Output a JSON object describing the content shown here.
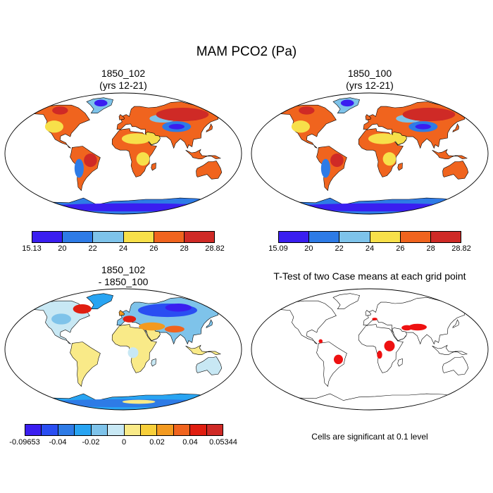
{
  "figure": {
    "title": "MAM PCO2 (Pa)"
  },
  "panels": [
    {
      "id": "p1",
      "title_line1": "1850_102",
      "title_line2": "(yrs 12-21)",
      "field": "abs"
    },
    {
      "id": "p2",
      "title_line1": "1850_100",
      "title_line2": "(yrs 12-21)",
      "field": "abs"
    },
    {
      "id": "p3",
      "title_line1": "1850_102",
      "title_line2": "- 1850_100",
      "field": "diff"
    },
    {
      "id": "p4",
      "title_line1": "T-Test of two Case means at each grid point",
      "title_line2": "",
      "field": "ttest"
    }
  ],
  "colorbars": {
    "abs1": {
      "colors": [
        "#3a1ef0",
        "#2e7be6",
        "#7ec3ea",
        "#f7e04a",
        "#f0641e",
        "#cf2a26"
      ],
      "labels": [
        "15.13",
        "20",
        "22",
        "24",
        "26",
        "28",
        "28.82"
      ]
    },
    "abs2": {
      "colors": [
        "#3a1ef0",
        "#2e7be6",
        "#7ec3ea",
        "#f7e04a",
        "#f0641e",
        "#cf2a26"
      ],
      "labels": [
        "15.09",
        "20",
        "22",
        "24",
        "26",
        "28",
        "28.82"
      ]
    },
    "diff": {
      "colors": [
        "#3a1ef0",
        "#2a4ef2",
        "#2e7be6",
        "#28a4f2",
        "#7ec3ea",
        "#c8e8f4",
        "#f9ea88",
        "#f7cf3a",
        "#f39a20",
        "#f0641e",
        "#e01e10",
        "#cf2a26"
      ],
      "labels": [
        "-0.09653",
        "-0.04",
        "-0.02",
        "0",
        "0.02",
        "0.04",
        "0.05344"
      ]
    }
  },
  "significance_note": "Cells are significant at 0.1 level",
  "colors": {
    "ocean": "#ffffff",
    "sig": "#ee1111",
    "outline": "#000000"
  }
}
